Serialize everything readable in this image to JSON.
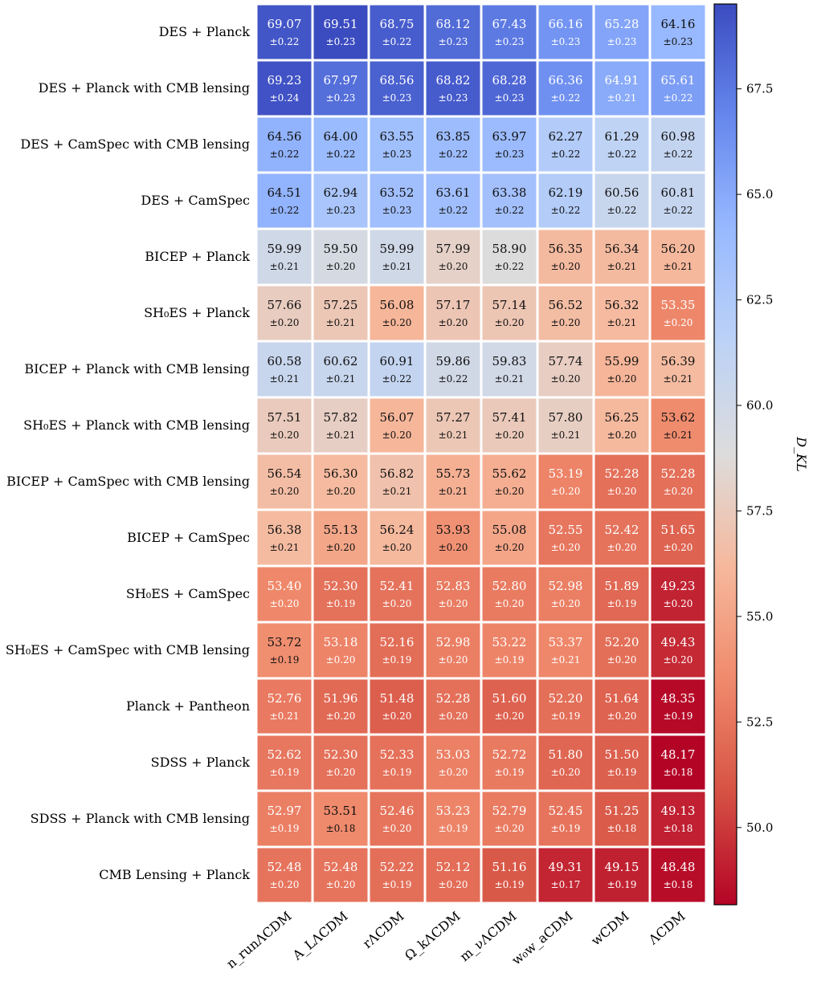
{
  "chart_data": {
    "type": "heatmap",
    "title": "",
    "rows": [
      "DES + Planck",
      "DES + Planck with CMB lensing",
      "DES + CamSpec with CMB lensing",
      "DES + CamSpec",
      "BICEP + Planck",
      "SH₀ES + Planck",
      "BICEP + Planck with CMB lensing",
      "SH₀ES + Planck with CMB lensing",
      "BICEP + CamSpec with CMB lensing",
      "BICEP + CamSpec",
      "SH₀ES + CamSpec",
      "SH₀ES + CamSpec with CMB lensing",
      "Planck + Pantheon",
      "SDSS + Planck",
      "SDSS + Planck with CMB lensing",
      "CMB Lensing + Planck"
    ],
    "columns": [
      "n_runΛCDM",
      "A_LΛCDM",
      "rΛCDM",
      "Ω_kΛCDM",
      "m_νΛCDM",
      "w₀w_aCDM",
      "wCDM",
      "ΛCDM"
    ],
    "values": [
      [
        69.07,
        69.51,
        68.75,
        68.12,
        67.43,
        66.16,
        65.28,
        64.16
      ],
      [
        69.23,
        67.97,
        68.56,
        68.82,
        68.28,
        66.36,
        64.91,
        65.61
      ],
      [
        64.56,
        64.0,
        63.55,
        63.85,
        63.97,
        62.27,
        61.29,
        60.98
      ],
      [
        64.51,
        62.94,
        63.52,
        63.61,
        63.38,
        62.19,
        60.56,
        60.81
      ],
      [
        59.99,
        59.5,
        59.99,
        57.99,
        58.9,
        56.35,
        56.34,
        56.2
      ],
      [
        57.66,
        57.25,
        56.08,
        57.17,
        57.14,
        56.52,
        56.32,
        53.35
      ],
      [
        60.58,
        60.62,
        60.91,
        59.86,
        59.83,
        57.74,
        55.99,
        56.39
      ],
      [
        57.51,
        57.82,
        56.07,
        57.27,
        57.41,
        57.8,
        56.25,
        53.62
      ],
      [
        56.54,
        56.3,
        56.82,
        55.73,
        55.62,
        53.19,
        52.28,
        52.28
      ],
      [
        56.38,
        55.13,
        56.24,
        53.93,
        55.08,
        52.55,
        52.42,
        51.65
      ],
      [
        53.4,
        52.3,
        52.41,
        52.83,
        52.8,
        52.98,
        51.89,
        49.23
      ],
      [
        53.72,
        53.18,
        52.16,
        52.98,
        53.22,
        53.37,
        52.2,
        49.43
      ],
      [
        52.76,
        51.96,
        51.48,
        52.28,
        51.6,
        52.2,
        51.64,
        48.35
      ],
      [
        52.62,
        52.3,
        52.33,
        53.03,
        52.72,
        51.8,
        51.5,
        48.17
      ],
      [
        52.97,
        53.51,
        52.46,
        53.23,
        52.79,
        52.45,
        51.25,
        49.13
      ],
      [
        52.48,
        52.48,
        52.22,
        52.12,
        51.16,
        49.31,
        49.15,
        48.48
      ]
    ],
    "errors": [
      [
        0.22,
        0.23,
        0.22,
        0.23,
        0.23,
        0.23,
        0.23,
        0.23
      ],
      [
        0.24,
        0.23,
        0.23,
        0.23,
        0.23,
        0.22,
        0.21,
        0.22
      ],
      [
        0.22,
        0.22,
        0.23,
        0.22,
        0.23,
        0.22,
        0.22,
        0.22
      ],
      [
        0.22,
        0.23,
        0.23,
        0.22,
        0.22,
        0.22,
        0.22,
        0.22
      ],
      [
        0.21,
        0.2,
        0.21,
        0.2,
        0.22,
        0.2,
        0.21,
        0.21
      ],
      [
        0.2,
        0.21,
        0.2,
        0.2,
        0.2,
        0.2,
        0.21,
        0.2
      ],
      [
        0.21,
        0.21,
        0.22,
        0.22,
        0.21,
        0.2,
        0.2,
        0.21
      ],
      [
        0.2,
        0.21,
        0.2,
        0.21,
        0.2,
        0.21,
        0.2,
        0.21
      ],
      [
        0.2,
        0.2,
        0.21,
        0.21,
        0.2,
        0.2,
        0.2,
        0.2
      ],
      [
        0.21,
        0.2,
        0.2,
        0.2,
        0.2,
        0.2,
        0.2,
        0.2
      ],
      [
        0.2,
        0.19,
        0.2,
        0.2,
        0.2,
        0.2,
        0.19,
        0.2
      ],
      [
        0.19,
        0.2,
        0.19,
        0.2,
        0.19,
        0.21,
        0.2,
        0.2
      ],
      [
        0.21,
        0.2,
        0.2,
        0.2,
        0.2,
        0.19,
        0.2,
        0.19
      ],
      [
        0.19,
        0.2,
        0.19,
        0.2,
        0.19,
        0.2,
        0.19,
        0.18
      ],
      [
        0.19,
        0.18,
        0.2,
        0.19,
        0.2,
        0.19,
        0.18,
        0.18
      ],
      [
        0.2,
        0.2,
        0.19,
        0.2,
        0.19,
        0.17,
        0.19,
        0.18
      ]
    ],
    "colormap": "coolwarm_r",
    "colorbar": {
      "label": "D_KL",
      "vmin": 48.17,
      "vmax": 69.51,
      "ticks": [
        50.0,
        52.5,
        55.0,
        57.5,
        60.0,
        62.5,
        65.0,
        67.5
      ],
      "tick_labels": [
        "50.0",
        "52.5",
        "55.0",
        "57.5",
        "60.0",
        "62.5",
        "65.0",
        "67.5"
      ]
    },
    "error_prefix": "±"
  }
}
